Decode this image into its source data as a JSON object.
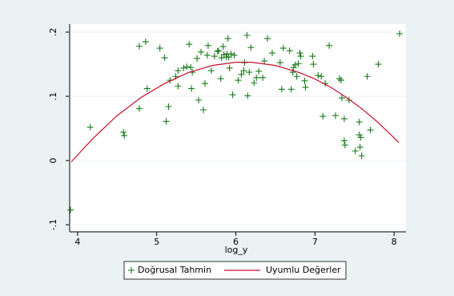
{
  "chart_data": {
    "type": "scatter",
    "x_label": "log_y",
    "xlim": [
      3.9,
      8.15
    ],
    "ylim": [
      -0.111,
      0.2125
    ],
    "xticks": [
      4,
      5,
      6,
      7,
      8
    ],
    "yticks": [
      {
        "value": -0.1,
        "label": "-.1"
      },
      0,
      {
        "value": 0.1,
        "label": ".1"
      },
      {
        "value": 0.2,
        "label": ".2"
      }
    ],
    "grid": true,
    "legend": "bottom",
    "series": [
      {
        "name": "Doğrusal Tahmin",
        "type": "scatter",
        "color": "#1a7a1a",
        "x": [
          3.91,
          4.16,
          4.58,
          4.59,
          4.78,
          4.78,
          4.86,
          4.88,
          5.04,
          5.1,
          5.12,
          5.15,
          5.17,
          5.24,
          5.27,
          5.27,
          5.34,
          5.38,
          5.41,
          5.43,
          5.44,
          5.45,
          5.51,
          5.53,
          5.56,
          5.59,
          5.61,
          5.64,
          5.65,
          5.69,
          5.73,
          5.77,
          5.78,
          5.81,
          5.82,
          5.84,
          5.85,
          5.88,
          5.89,
          5.9,
          5.91,
          5.92,
          5.94,
          5.96,
          5.98,
          6.03,
          6.07,
          6.1,
          6.11,
          6.14,
          6.15,
          6.17,
          6.19,
          6.23,
          6.26,
          6.29,
          6.34,
          6.36,
          6.4,
          6.46,
          6.56,
          6.58,
          6.6,
          6.68,
          6.7,
          6.72,
          6.73,
          6.75,
          6.77,
          6.79,
          6.81,
          6.82,
          6.87,
          6.88,
          6.97,
          6.98,
          7.04,
          7.08,
          7.1,
          7.13,
          7.18,
          7.26,
          7.31,
          7.33,
          7.34,
          7.37,
          7.37,
          7.38,
          7.43,
          7.51,
          7.56,
          7.56,
          7.57,
          7.58,
          7.59,
          7.66,
          7.7,
          7.8,
          8.07
        ],
        "values": [
          -0.077,
          0.052,
          0.044,
          0.039,
          0.081,
          0.178,
          0.185,
          0.112,
          0.175,
          0.16,
          0.061,
          0.084,
          0.125,
          0.131,
          0.14,
          0.116,
          0.144,
          0.146,
          0.181,
          0.145,
          0.112,
          0.1375,
          0.159,
          0.094,
          0.169,
          0.079,
          0.12,
          0.164,
          0.179,
          0.14,
          0.1625,
          0.17,
          0.171,
          0.1275,
          0.16,
          0.1775,
          0.165,
          0.161,
          0.166,
          0.19,
          0.161,
          0.144,
          0.166,
          0.1025,
          0.164,
          0.125,
          0.134,
          0.14,
          0.1525,
          0.195,
          0.101,
          0.1375,
          0.176,
          0.121,
          0.129,
          0.139,
          0.129,
          0.155,
          0.19,
          0.1675,
          0.1525,
          0.111,
          0.175,
          0.171,
          0.111,
          0.1375,
          0.145,
          0.149,
          0.131,
          0.151,
          0.1675,
          0.1625,
          0.124,
          0.114,
          0.1625,
          0.15,
          0.1325,
          0.131,
          0.069,
          0.12,
          0.179,
          0.07,
          0.1275,
          0.125,
          0.0975,
          0.065,
          0.031,
          0.024,
          0.094,
          0.015,
          0.06,
          0.04,
          0.021,
          0.036,
          0.0075,
          0.131,
          0.0475,
          0.15,
          0.1975
        ]
      },
      {
        "name": "Uyumlu Değerler",
        "type": "line",
        "color": "#c8102e",
        "x": [
          3.92,
          4.2,
          4.5,
          4.8,
          5.1,
          5.4,
          5.7,
          6.0,
          6.2,
          6.5,
          6.8,
          7.0,
          7.2,
          7.4,
          7.6,
          7.8,
          8.06
        ],
        "values": [
          -0.002,
          0.035,
          0.07,
          0.098,
          0.12,
          0.137,
          0.148,
          0.153,
          0.153,
          0.148,
          0.137,
          0.127,
          0.114,
          0.098,
          0.08,
          0.059,
          0.028
        ]
      }
    ]
  }
}
